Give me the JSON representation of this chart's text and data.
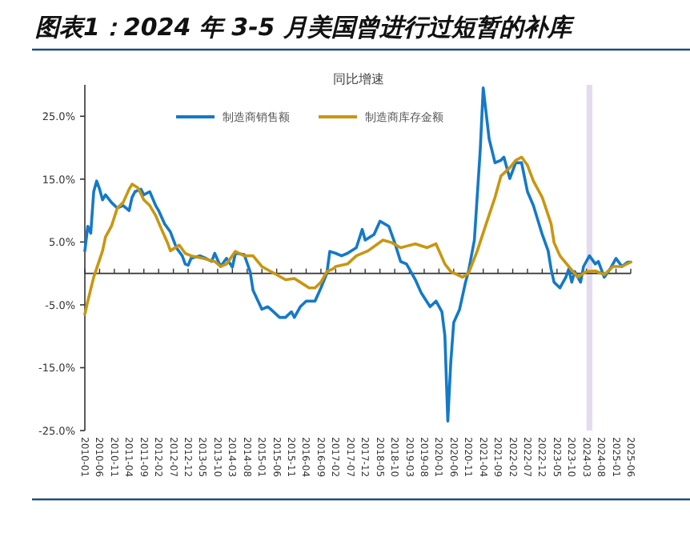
{
  "chart_data": {
    "type": "line",
    "title": "图表1：2024 年 3-5 月美国曾进行过短暂的补库",
    "subtitle": "同比增速",
    "xlim": [
      "2010-01",
      "2025-06"
    ],
    "xticks": [
      "2010-01",
      "2010-06",
      "2010-11",
      "2011-04",
      "2011-09",
      "2012-02",
      "2012-07",
      "2012-12",
      "2013-05",
      "2013-10",
      "2014-03",
      "2014-08",
      "2015-01",
      "2015-06",
      "2015-11",
      "2016-04",
      "2016-09",
      "2017-02",
      "2017-07",
      "2017-12",
      "2018-05",
      "2018-10",
      "2019-03",
      "2019-08",
      "2020-01",
      "2020-06",
      "2020-11",
      "2021-04",
      "2021-09",
      "2022-02",
      "2022-07",
      "2022-12",
      "2023-05",
      "2023-10",
      "2024-03",
      "2024-08",
      "2025-01",
      "2025-06"
    ],
    "ylim": [
      -25,
      30
    ],
    "yticks": [
      {
        "value": -25,
        "label": "-25.0%"
      },
      {
        "value": -15,
        "label": "-15.0%"
      },
      {
        "value": -5,
        "label": "-5.0%"
      },
      {
        "value": 5,
        "label": "5.0%"
      },
      {
        "value": 15,
        "label": "15.0%"
      },
      {
        "value": 25,
        "label": "25.0%"
      }
    ],
    "legend": "top",
    "bands": [
      {
        "axis": "x",
        "from": "2024-03",
        "to": "2024-05",
        "color": "#e4dcee"
      }
    ],
    "series": [
      {
        "name": "制造商销售额",
        "color": "#1479c9",
        "x": [
          "2010-01",
          "2010-02",
          "2010-03",
          "2010-04",
          "2010-05",
          "2010-06",
          "2010-07",
          "2010-08",
          "2010-10",
          "2010-12",
          "2011-02",
          "2011-04",
          "2011-05",
          "2011-06",
          "2011-08",
          "2011-09",
          "2011-11",
          "2012-01",
          "2012-02",
          "2012-04",
          "2012-06",
          "2012-08",
          "2012-10",
          "2012-11",
          "2012-12",
          "2013-01",
          "2013-04",
          "2013-06",
          "2013-08",
          "2013-09",
          "2013-11",
          "2014-01",
          "2014-03",
          "2014-04",
          "2014-07",
          "2014-09",
          "2014-10",
          "2015-01",
          "2015-03",
          "2015-04",
          "2015-07",
          "2015-09",
          "2015-11",
          "2015-12",
          "2016-02",
          "2016-04",
          "2016-07",
          "2016-09",
          "2016-11",
          "2016-12",
          "2017-02",
          "2017-04",
          "2017-06",
          "2017-09",
          "2017-11",
          "2017-12",
          "2018-03",
          "2018-05",
          "2018-08",
          "2018-10",
          "2018-12",
          "2019-02",
          "2019-05",
          "2019-07",
          "2019-10",
          "2019-12",
          "2020-02",
          "2020-03",
          "2020-04",
          "2020-05",
          "2020-06",
          "2020-08",
          "2020-10",
          "2020-11",
          "2021-01",
          "2021-03",
          "2021-04",
          "2021-06",
          "2021-08",
          "2021-10",
          "2021-11",
          "2022-01",
          "2022-03",
          "2022-05",
          "2022-07",
          "2022-09",
          "2022-12",
          "2023-02",
          "2023-03",
          "2023-04",
          "2023-06",
          "2023-08",
          "2023-09",
          "2023-10",
          "2023-11",
          "2024-01",
          "2024-02",
          "2024-04",
          "2024-06",
          "2024-07",
          "2024-09",
          "2024-11",
          "2025-01",
          "2025-03",
          "2025-05",
          "2025-06"
        ],
        "values": [
          3.6,
          7.5,
          6.4,
          13,
          14.7,
          13.4,
          11.7,
          12.5,
          11.3,
          10.4,
          10.8,
          10,
          12.1,
          13,
          13.4,
          12.5,
          13,
          10.8,
          10,
          7.9,
          6.6,
          4.1,
          2.8,
          1.5,
          1.3,
          2.4,
          2.8,
          2.4,
          1.9,
          3.2,
          1.1,
          2.4,
          1,
          3.2,
          3,
          0.3,
          -2.7,
          -5.7,
          -5.3,
          -5.7,
          -7,
          -7,
          -6.1,
          -7,
          -5.3,
          -4.4,
          -4.4,
          -2.3,
          0,
          3.5,
          3.2,
          2.8,
          3.2,
          4.1,
          7,
          5.3,
          6.2,
          8.3,
          7.5,
          4.9,
          1.9,
          1.5,
          -1,
          -3.1,
          -5.3,
          -4.4,
          -6.1,
          -9.9,
          -23.5,
          -14.2,
          -7.8,
          -5.7,
          -1.4,
          0.3,
          5.3,
          19.7,
          29.5,
          21.4,
          17.6,
          18,
          18.5,
          15.1,
          17.6,
          17.6,
          13,
          10.8,
          6.2,
          3.6,
          0.7,
          -1.4,
          -2.3,
          -0.6,
          0.7,
          -1.4,
          0.3,
          -1.4,
          1.1,
          2.8,
          1.5,
          1.9,
          -0.6,
          0.7,
          2.4,
          1.1,
          1.8,
          1.8
        ]
      },
      {
        "name": "制造商库存金额",
        "color": "#c9960f",
        "x": [
          "2010-01",
          "2010-02",
          "2010-04",
          "2010-07",
          "2010-08",
          "2010-10",
          "2010-12",
          "2011-02",
          "2011-04",
          "2011-05",
          "2011-07",
          "2011-09",
          "2011-11",
          "2012-01",
          "2012-03",
          "2012-05",
          "2012-06",
          "2012-09",
          "2012-11",
          "2013-01",
          "2013-05",
          "2013-09",
          "2013-11",
          "2014-01",
          "2014-04",
          "2014-07",
          "2014-10",
          "2015-01",
          "2015-04",
          "2015-06",
          "2015-09",
          "2015-12",
          "2016-02",
          "2016-05",
          "2016-07",
          "2016-09",
          "2016-11",
          "2017-01",
          "2017-02",
          "2017-06",
          "2017-09",
          "2018-01",
          "2018-06",
          "2018-09",
          "2018-12",
          "2019-05",
          "2019-09",
          "2019-12",
          "2020-03",
          "2020-05",
          "2020-09",
          "2020-11",
          "2021-02",
          "2021-05",
          "2021-08",
          "2021-10",
          "2022-01",
          "2022-03",
          "2022-05",
          "2022-07",
          "2022-09",
          "2022-12",
          "2023-03",
          "2023-04",
          "2023-06",
          "2023-09",
          "2023-12",
          "2024-03",
          "2024-06",
          "2024-09",
          "2024-12",
          "2025-03",
          "2025-06"
        ],
        "values": [
          -6.5,
          -4.4,
          -0.6,
          3.6,
          5.8,
          7.5,
          10.4,
          11.3,
          13.4,
          14.2,
          13.6,
          11.7,
          10.8,
          9.2,
          7,
          4.9,
          3.6,
          4.5,
          3.2,
          2.8,
          2.4,
          1.9,
          1.1,
          1.5,
          3.5,
          2.8,
          2.8,
          1.1,
          0.3,
          -0.2,
          -1,
          -0.8,
          -1.4,
          -2.3,
          -2.3,
          -1.4,
          0.3,
          0.7,
          1.1,
          1.5,
          2.8,
          3.6,
          5.3,
          4.9,
          4.1,
          4.7,
          4.1,
          4.7,
          1.5,
          0.3,
          -0.6,
          0,
          3.6,
          7.9,
          12.1,
          15.5,
          16.8,
          18,
          18.5,
          17.2,
          14.7,
          12.1,
          7.9,
          4.9,
          2.8,
          1.1,
          -0.6,
          0.3,
          0.4,
          -0.2,
          1.1,
          1.1,
          1.8
        ]
      }
    ]
  }
}
